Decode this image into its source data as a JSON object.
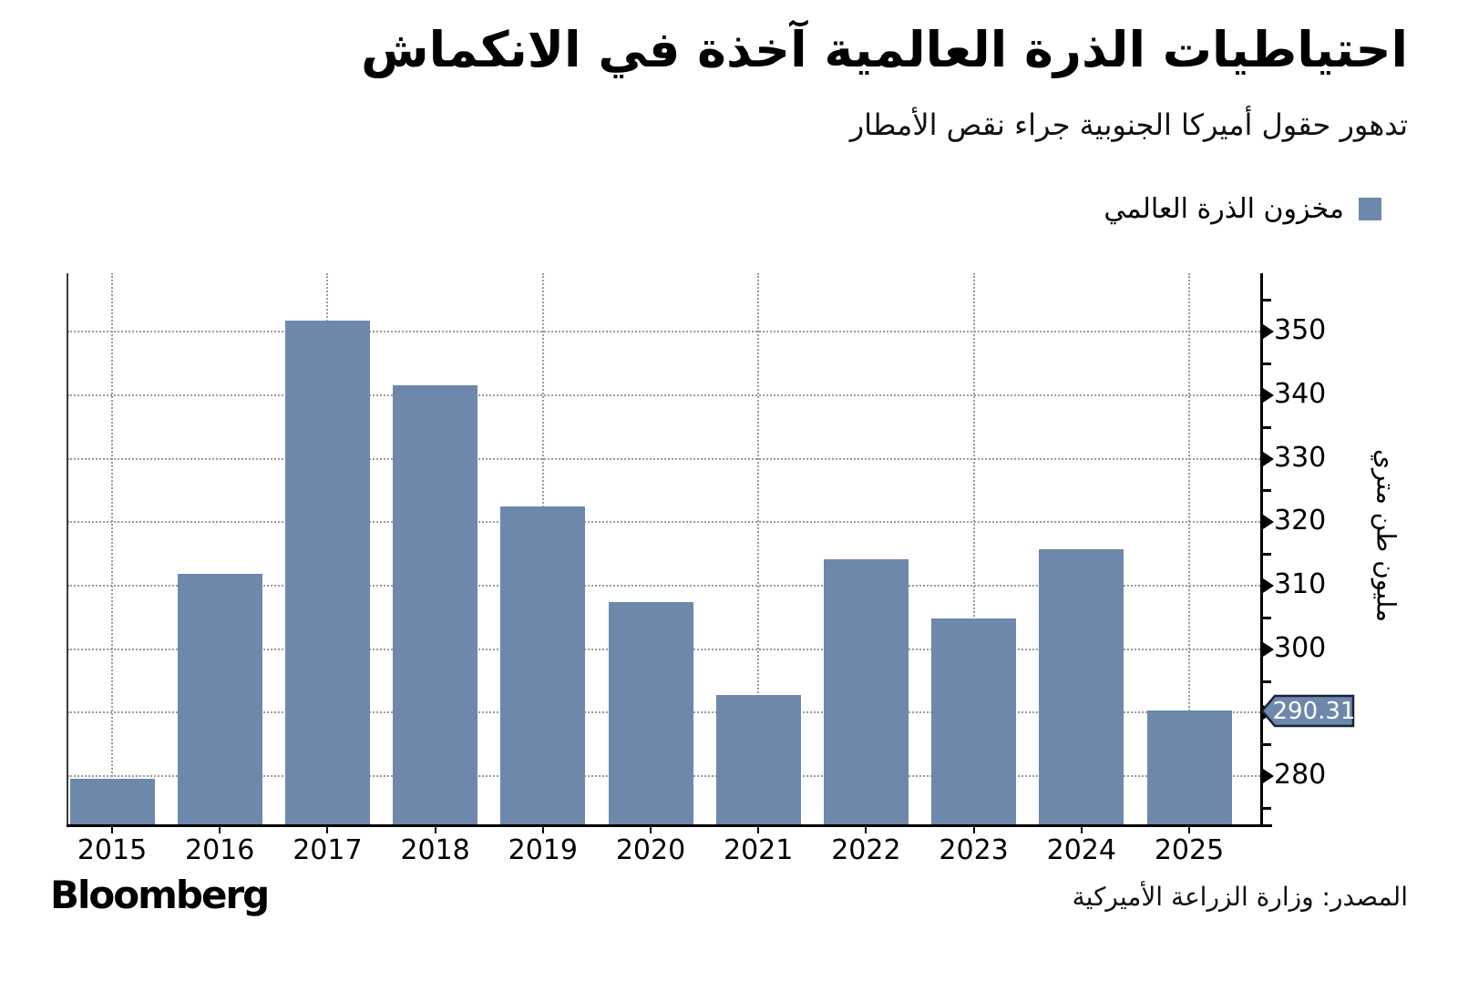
{
  "chart_data": {
    "type": "bar",
    "title": "احتياطيات الذرة العالمية آخذة في الانكماش",
    "subtitle": "تدهور حقول أميركا الجنوبية جراء نقص الأمطار",
    "categories": [
      "2015",
      "2016",
      "2017",
      "2018",
      "2019",
      "2020",
      "2021",
      "2022",
      "2023",
      "2024",
      "2025"
    ],
    "series": [
      {
        "name": "مخزون الذرة العالمي",
        "values": [
          279.6,
          311.8,
          351.8,
          341.6,
          322.5,
          307.4,
          292.8,
          314.1,
          304.9,
          315.7,
          290.31
        ]
      }
    ],
    "xlabel": "",
    "ylabel": "مليون طن متري",
    "ylim": [
      272.4,
      359.2
    ],
    "yticks": [
      280,
      290,
      300,
      310,
      320,
      330,
      340,
      350
    ],
    "minor_ytick_step": 5,
    "grid": {
      "horizontal": true,
      "vertical": "alternate-years",
      "style": "dotted"
    },
    "legend_position": "top-right",
    "bar_color": "#6e88ac",
    "annotation": {
      "label": "290.31",
      "value": 290.31,
      "target_category": "2025",
      "text_color": "#ffffff",
      "border_color": "#16233a"
    }
  },
  "footer": {
    "brand": "Bloomberg",
    "source": "المصدر: وزارة الزراعة الأميركية"
  }
}
